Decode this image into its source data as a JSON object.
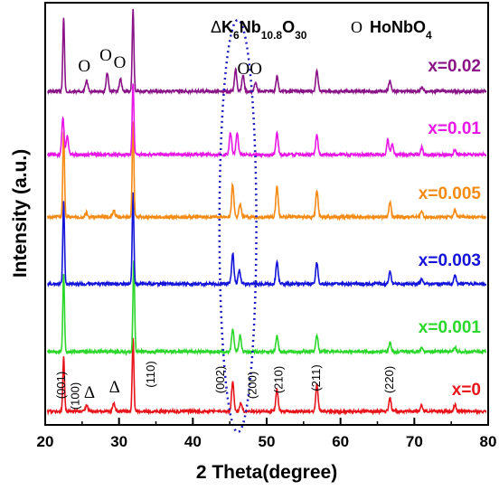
{
  "chart_data": {
    "type": "line",
    "xlabel": "2 Theta(degree)",
    "ylabel": "Intensity (a.u.)",
    "xlim": [
      20,
      80
    ],
    "x_ticks": [
      "20",
      "30",
      "40",
      "50",
      "60",
      "70",
      "80"
    ],
    "legend_items": [
      {
        "symbol": "Δ",
        "formula": [
          "K",
          "6",
          "Nb",
          "10.8",
          "O",
          "30"
        ]
      },
      {
        "symbol": "O",
        "formula": [
          "HoNbO",
          "4"
        ]
      }
    ],
    "series": [
      {
        "name": "x=0",
        "color": "#e8141b",
        "peaks": [
          [
            22.5,
            60
          ],
          [
            25.6,
            7
          ],
          [
            29.3,
            10
          ],
          [
            31.9,
            82
          ],
          [
            45.4,
            32
          ],
          [
            46.5,
            10
          ],
          [
            51.4,
            24
          ],
          [
            56.8,
            30
          ],
          [
            66.7,
            15
          ],
          [
            71.0,
            7
          ],
          [
            75.5,
            8
          ]
        ]
      },
      {
        "name": "x=0.001",
        "color": "#2cd72c",
        "peaks": [
          [
            22.5,
            85
          ],
          [
            32.0,
            100
          ],
          [
            45.4,
            25
          ],
          [
            46.4,
            18
          ],
          [
            51.4,
            18
          ],
          [
            56.8,
            18
          ],
          [
            66.7,
            10
          ],
          [
            71.0,
            5
          ],
          [
            75.5,
            5
          ]
        ]
      },
      {
        "name": "x=0.003",
        "color": "#1414d9",
        "peaks": [
          [
            22.5,
            90
          ],
          [
            31.9,
            100
          ],
          [
            45.4,
            34
          ],
          [
            46.3,
            15
          ],
          [
            51.4,
            24
          ],
          [
            56.8,
            24
          ],
          [
            66.7,
            14
          ],
          [
            71.0,
            6
          ],
          [
            75.5,
            10
          ]
        ]
      },
      {
        "name": "x=0.005",
        "color": "#f58a14",
        "peaks": [
          [
            22.5,
            95
          ],
          [
            25.6,
            5
          ],
          [
            29.3,
            7
          ],
          [
            31.9,
            105
          ],
          [
            45.4,
            36
          ],
          [
            46.4,
            15
          ],
          [
            51.4,
            34
          ],
          [
            56.8,
            30
          ],
          [
            66.7,
            16
          ],
          [
            71.0,
            6
          ],
          [
            75.5,
            8
          ]
        ]
      },
      {
        "name": "x=0.01",
        "color": "#e817e6",
        "peaks": [
          [
            22.4,
            40
          ],
          [
            23.0,
            20
          ],
          [
            31.9,
            80
          ],
          [
            45.1,
            24
          ],
          [
            46.0,
            24
          ],
          [
            51.4,
            25
          ],
          [
            56.8,
            22
          ],
          [
            66.4,
            16
          ],
          [
            67.0,
            12
          ],
          [
            71.0,
            8
          ],
          [
            75.5,
            6
          ]
        ]
      },
      {
        "name": "x=0.02",
        "color": "#8a1487",
        "peaks": [
          [
            22.5,
            82
          ],
          [
            25.6,
            12
          ],
          [
            28.4,
            20
          ],
          [
            30.2,
            15
          ],
          [
            31.9,
            92
          ],
          [
            45.8,
            24
          ],
          [
            46.8,
            18
          ],
          [
            48.5,
            10
          ],
          [
            51.4,
            16
          ],
          [
            56.8,
            22
          ],
          [
            66.7,
            12
          ],
          [
            71.0,
            4
          ]
        ]
      }
    ],
    "annotations": {
      "miller_indices": [
        {
          "label": "(001)",
          "x": 22.3
        },
        {
          "label": "(100)",
          "x": 24.2
        },
        {
          "label": "(110)",
          "x": 34.4
        },
        {
          "label": "(002)",
          "x": 43.8
        },
        {
          "label": "(200)",
          "x": 48.2
        },
        {
          "label": "(210)",
          "x": 51.7
        },
        {
          "label": "(211)",
          "x": 56.8
        },
        {
          "label": "(220)",
          "x": 66.7
        }
      ],
      "delta_markers": [
        {
          "label": "Δ",
          "x": 26.0
        },
        {
          "label": "Δ",
          "x": 29.4
        }
      ],
      "o_markers": [
        {
          "label": "O",
          "x": 25.3
        },
        {
          "label": "O",
          "x": 28.2
        },
        {
          "label": "O",
          "x": 30.1
        },
        {
          "label": "OO",
          "x": 47.7
        }
      ],
      "ellipse": {
        "x_center": 46.1,
        "x_half_width": 2.5
      }
    }
  }
}
